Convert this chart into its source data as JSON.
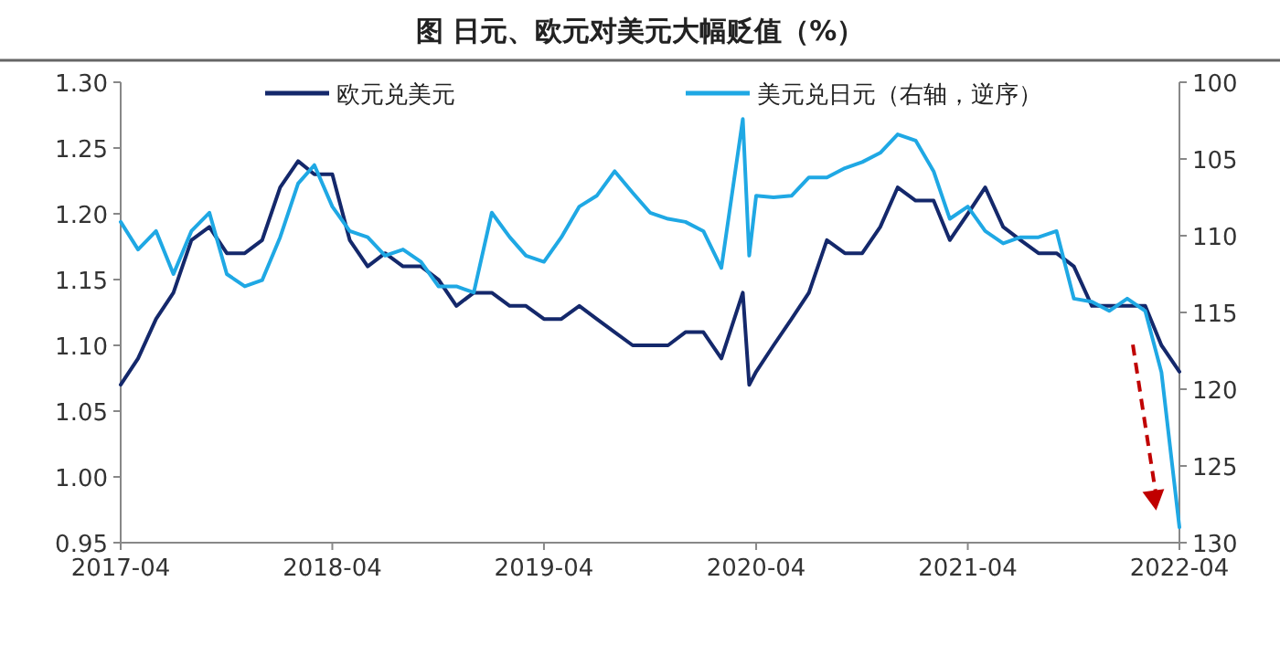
{
  "chart_data": {
    "type": "line",
    "title": "图  日元、欧元对美元大幅贬值（%）",
    "x": [
      "2017-04-01",
      "2017-05-01",
      "2017-06-01",
      "2017-07-01",
      "2017-08-01",
      "2017-09-01",
      "2017-10-01",
      "2017-11-01",
      "2017-12-01",
      "2018-01-01",
      "2018-02-01",
      "2018-03-01",
      "2018-04-01",
      "2018-05-01",
      "2018-06-01",
      "2018-07-01",
      "2018-08-01",
      "2018-09-01",
      "2018-10-01",
      "2018-11-01",
      "2018-12-01",
      "2019-01-01",
      "2019-02-01",
      "2019-03-01",
      "2019-04-01",
      "2019-05-01",
      "2019-06-01",
      "2019-07-01",
      "2019-08-01",
      "2019-09-01",
      "2019-10-01",
      "2019-11-01",
      "2019-12-01",
      "2020-01-01",
      "2020-02-01",
      "2020-03-09",
      "2020-03-20",
      "2020-04-01",
      "2020-05-01",
      "2020-06-01",
      "2020-07-01",
      "2020-08-01",
      "2020-09-01",
      "2020-10-01",
      "2020-11-01",
      "2020-12-01",
      "2021-01-01",
      "2021-02-01",
      "2021-03-01",
      "2021-04-01",
      "2021-05-01",
      "2021-06-01",
      "2021-07-01",
      "2021-08-01",
      "2021-09-01",
      "2021-10-01",
      "2021-11-01",
      "2021-12-01",
      "2022-01-01",
      "2022-02-01",
      "2022-03-01",
      "2022-04-01"
    ],
    "series": [
      {
        "name": "欧元兑美元",
        "color": "#14286b",
        "values": [
          1.07,
          1.09,
          1.12,
          1.14,
          1.18,
          1.19,
          1.17,
          1.17,
          1.18,
          1.22,
          1.24,
          1.23,
          1.23,
          1.18,
          1.16,
          1.17,
          1.16,
          1.16,
          1.15,
          1.13,
          1.14,
          1.14,
          1.13,
          1.13,
          1.12,
          1.12,
          1.13,
          1.12,
          1.11,
          1.1,
          1.1,
          1.1,
          1.11,
          1.11,
          1.09,
          1.14,
          1.07,
          1.08,
          1.1,
          1.12,
          1.14,
          1.18,
          1.17,
          1.17,
          1.19,
          1.22,
          1.21,
          1.21,
          1.18,
          1.2,
          1.22,
          1.19,
          1.18,
          1.17,
          1.17,
          1.16,
          1.13,
          1.13,
          1.13,
          1.13,
          1.1,
          1.08
        ]
      },
      {
        "name": "美元兑日元（右轴，逆序）",
        "color": "#1fa8e4",
        "axis": "y2",
        "values": [
          109.1,
          110.9,
          109.7,
          112.5,
          109.7,
          108.5,
          112.5,
          113.3,
          112.9,
          110.1,
          106.6,
          105.4,
          108.1,
          109.7,
          110.1,
          111.3,
          110.9,
          111.7,
          113.3,
          113.3,
          113.7,
          108.5,
          110.1,
          111.3,
          111.7,
          110.1,
          108.1,
          107.4,
          105.8,
          107.2,
          108.5,
          108.9,
          109.1,
          109.7,
          112.1,
          102.4,
          111.3,
          107.4,
          107.5,
          107.4,
          106.2,
          106.2,
          105.6,
          105.2,
          104.6,
          103.4,
          103.8,
          105.8,
          108.9,
          108.1,
          109.7,
          110.5,
          110.1,
          110.1,
          109.7,
          114.1,
          114.3,
          114.9,
          114.1,
          114.9,
          118.9,
          129.0
        ]
      }
    ],
    "xlim": [
      "2017-04-01",
      "2022-04-01"
    ],
    "xticks": [
      {
        "value": "2017-04-01",
        "label": "2017-04"
      },
      {
        "value": "2018-04-01",
        "label": "2018-04"
      },
      {
        "value": "2019-04-01",
        "label": "2019-04"
      },
      {
        "value": "2020-04-01",
        "label": "2020-04"
      },
      {
        "value": "2021-04-01",
        "label": "2021-04"
      },
      {
        "value": "2022-04-01",
        "label": "2022-04"
      }
    ],
    "ylim": [
      0.95,
      1.3
    ],
    "yticks": [
      {
        "value": 0.95,
        "label": "0.95"
      },
      {
        "value": 1.0,
        "label": "1.00"
      },
      {
        "value": 1.05,
        "label": "1.05"
      },
      {
        "value": 1.1,
        "label": "1.10"
      },
      {
        "value": 1.15,
        "label": "1.15"
      },
      {
        "value": 1.2,
        "label": "1.20"
      },
      {
        "value": 1.25,
        "label": "1.25"
      },
      {
        "value": 1.3,
        "label": "1.30"
      }
    ],
    "y2lim": [
      130,
      100
    ],
    "y2ticks": [
      100,
      105,
      110,
      115,
      120,
      125,
      130
    ],
    "legend": "top",
    "grid": false,
    "line_style": "solid",
    "marker": "none"
  }
}
